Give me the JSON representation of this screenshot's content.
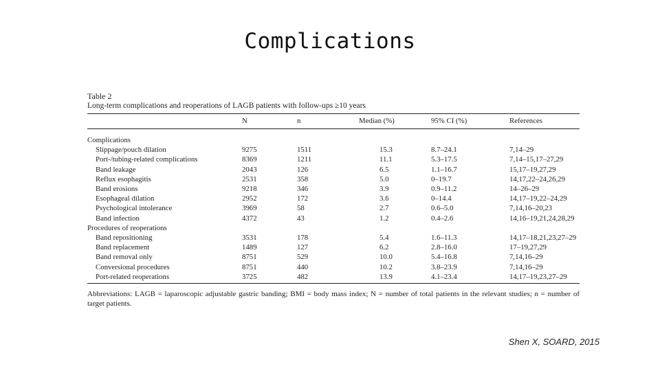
{
  "slide": {
    "title": "Complications",
    "citation": "Shen X, SOARD, 2015"
  },
  "table": {
    "label": "Table 2",
    "caption": "Long-term complications and reoperations of LAGB patients with follow-ups ≥10 years",
    "headers": [
      "",
      "N",
      "n",
      "Median (%)",
      "95% CI (%)",
      "References"
    ],
    "sections": [
      {
        "title": "Complications",
        "rows": [
          {
            "label": "Slippage/pouch dilation",
            "N": "9275",
            "n": "1511",
            "median": "15.3",
            "ci": "8.7–24.1",
            "refs": "7,14–29"
          },
          {
            "label": "Port-/tubing-related complications",
            "N": "8369",
            "n": "1211",
            "median": "11.1",
            "ci": "5.3–17.5",
            "refs": "7,14–15,17–27,29"
          },
          {
            "label": "Band leakage",
            "N": "2043",
            "n": "126",
            "median": "6.5",
            "ci": "1.1–16.7",
            "refs": "15,17–19,27,29"
          },
          {
            "label": "Reflux esophagitis",
            "N": "2531",
            "n": "358",
            "median": "5.0",
            "ci": "0–19.7",
            "refs": "14,17,22–24,26,29"
          },
          {
            "label": "Band erosions",
            "N": "9218",
            "n": "346",
            "median": "3.9",
            "ci": "0.9–11.2",
            "refs": "14–26–29"
          },
          {
            "label": "Esophageal dilation",
            "N": "2952",
            "n": "172",
            "median": "3.6",
            "ci": "0–14.4",
            "refs": "14,17–19,22–24,29"
          },
          {
            "label": "Psychological intolerance",
            "N": "3969",
            "n": "58",
            "median": "2.7",
            "ci": "0.6–5.0",
            "refs": "7,14,16–20,23"
          },
          {
            "label": "Band infection",
            "N": "4372",
            "n": "43",
            "median": "1.2",
            "ci": "0.4–2.6",
            "refs": "14,16–19,21,24,28,29"
          }
        ]
      },
      {
        "title": "Procedures of reoperations",
        "rows": [
          {
            "label": "Band repositioning",
            "N": "3531",
            "n": "178",
            "median": "5.4",
            "ci": "1.6–11.3",
            "refs": "14,17–18,21,23,27–29"
          },
          {
            "label": "Band replacement",
            "N": "1489",
            "n": "127",
            "median": "6.2",
            "ci": "2.8–16.0",
            "refs": "17–19,27,29"
          },
          {
            "label": "Band removal only",
            "N": "8751",
            "n": "529",
            "median": "10.0",
            "ci": "5.4–16.8",
            "refs": "7,14,16–29"
          },
          {
            "label": "Conversional procedures",
            "N": "8751",
            "n": "440",
            "median": "10.2",
            "ci": "3.8–23.9",
            "refs": "7,14,16–29"
          },
          {
            "label": "Port-related reoperations",
            "N": "3725",
            "n": "482",
            "median": "13.9",
            "ci": "4.1–23.4",
            "refs": "14,17–19,23,27–29"
          }
        ]
      }
    ],
    "footnote": "Abbreviations: LAGB = laparoscopic adjustable gastric banding; BMI = body mass index; N = number of total patients in the relevant studies; n = number of target patients."
  }
}
